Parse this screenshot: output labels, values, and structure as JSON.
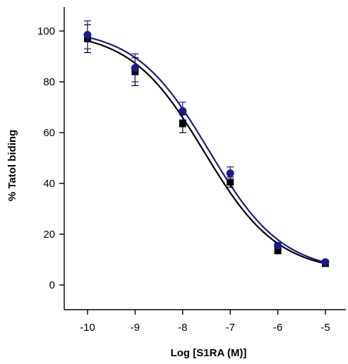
{
  "chart_data": {
    "type": "scatter",
    "xlabel": "Log [S1RA (M)]",
    "ylabel": "% Tatol biding",
    "xlim": [
      -10.5,
      -4.6
    ],
    "ylim": [
      -9,
      110
    ],
    "x_ticks": [
      -10,
      -9,
      -8,
      -7,
      -6,
      -5
    ],
    "y_ticks": [
      0,
      20,
      40,
      60,
      80,
      100
    ],
    "grid": false,
    "legend": "none",
    "series": [
      {
        "marker": "square",
        "color": "#000000",
        "x": [
          -10,
          -9,
          -8,
          -7,
          -6,
          -5
        ],
        "y": [
          97,
          84,
          63.5,
          40.5,
          13.5,
          8.5
        ],
        "error": [
          5.5,
          5.5,
          3.5,
          2,
          1,
          0.8
        ],
        "fit": {
          "top": 100,
          "bottom": 5,
          "log_ic50": -7.55,
          "hill": -0.56
        }
      },
      {
        "marker": "circle",
        "color": "#1b1b8c",
        "x": [
          -10,
          -9,
          -8,
          -7,
          -6,
          -5
        ],
        "y": [
          98.5,
          85.5,
          68.5,
          44,
          15.5,
          9
        ],
        "error": [
          5.5,
          5.5,
          3.5,
          2.5,
          1,
          0.8
        ],
        "fit": {
          "top": 101,
          "bottom": 5,
          "log_ic50": -7.45,
          "hill": -0.56
        }
      }
    ]
  }
}
